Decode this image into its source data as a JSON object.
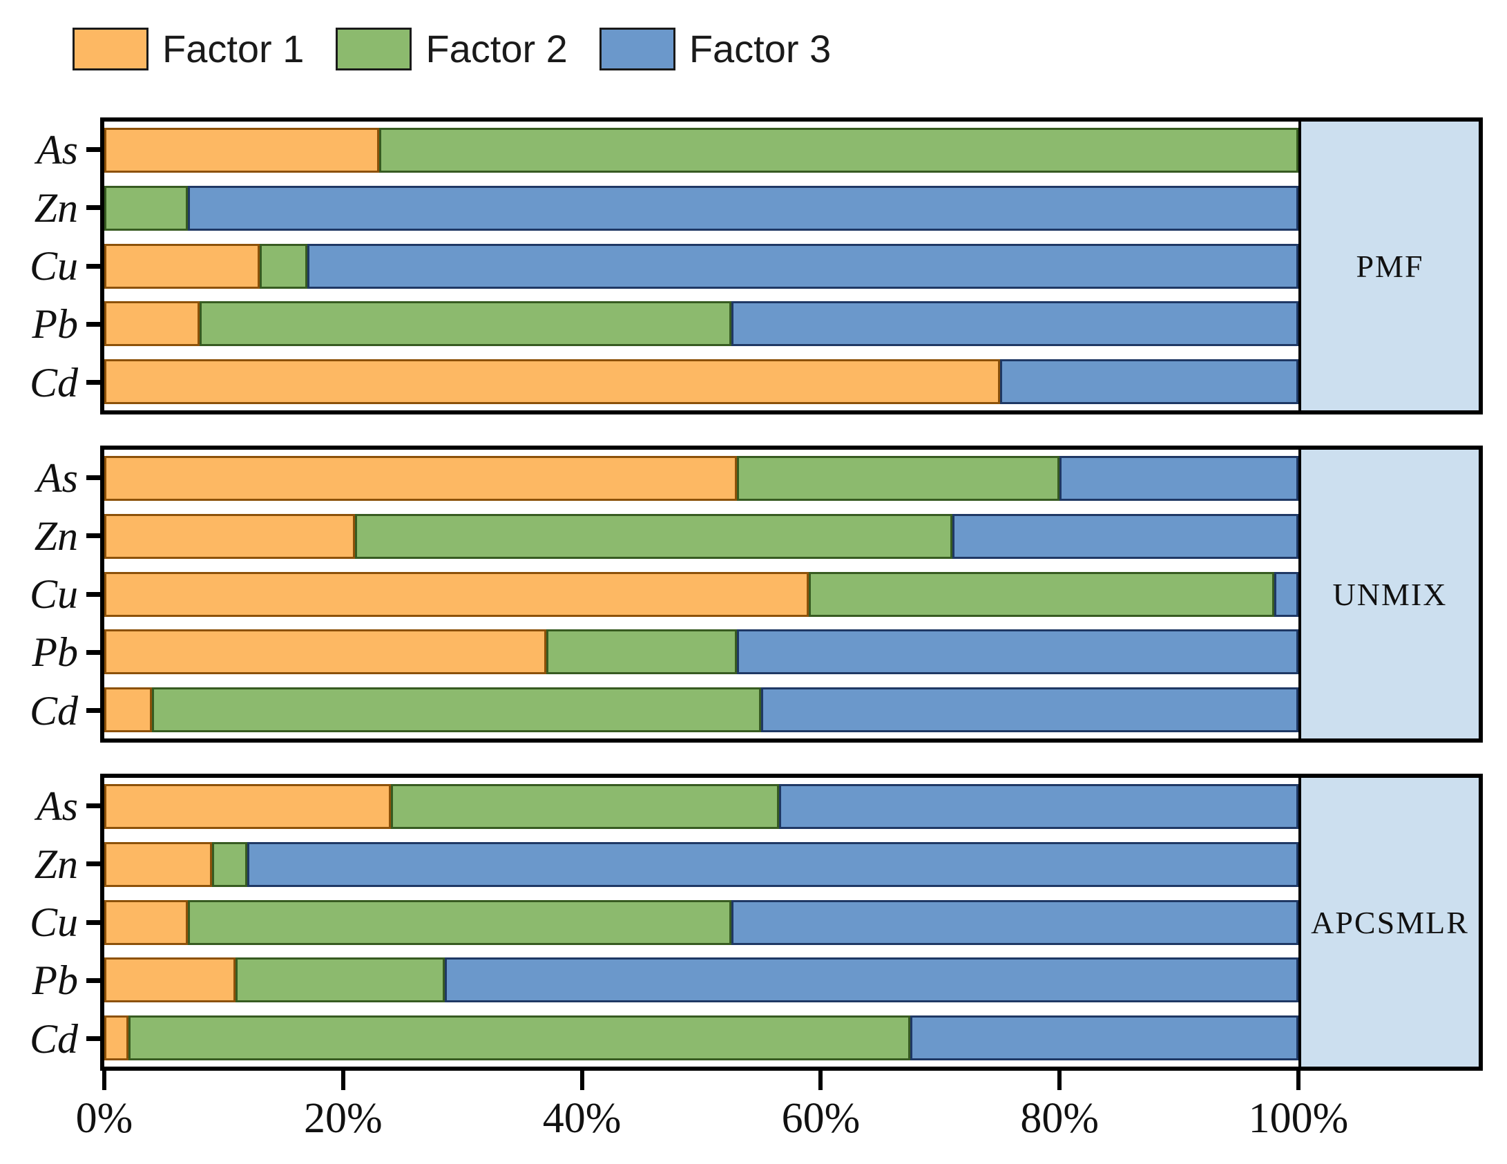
{
  "legend": {
    "items": [
      {
        "label": "Factor 1",
        "color": "#FDB863"
      },
      {
        "label": "Factor 2",
        "color": "#8CBA6E"
      },
      {
        "label": "Factor 3",
        "color": "#6B98CB"
      }
    ]
  },
  "colors": {
    "factor_fill": [
      "#FDB863",
      "#8CBA6E",
      "#6B98CB"
    ],
    "factor_border": [
      "#8C5109",
      "#375B21",
      "#1F3864"
    ],
    "panel_strip_bg": "#CCDFEF",
    "panel_border": "#000000"
  },
  "x_axis": {
    "tick_labels": [
      "0%",
      "20%",
      "40%",
      "60%",
      "80%",
      "100%"
    ],
    "tick_values": [
      0,
      20,
      40,
      60,
      80,
      100
    ]
  },
  "chart_data": {
    "type": "bar",
    "orientation": "horizontal",
    "stacked": true,
    "unit": "percent",
    "xlim": [
      0,
      100
    ],
    "grid": false,
    "legend_position": "top",
    "categories": [
      "As",
      "Zn",
      "Cu",
      "Pb",
      "Cd"
    ],
    "series_names": [
      "Factor 1",
      "Factor 2",
      "Factor 3"
    ],
    "panels": [
      {
        "label": "PMF",
        "rows": [
          {
            "element": "As",
            "values": [
              23,
              77,
              0
            ]
          },
          {
            "element": "Zn",
            "values": [
              0,
              7,
              93
            ]
          },
          {
            "element": "Cu",
            "values": [
              13,
              4,
              83
            ]
          },
          {
            "element": "Pb",
            "values": [
              8,
              44.5,
              47.5
            ]
          },
          {
            "element": "Cd",
            "values": [
              75,
              0,
              25
            ]
          }
        ]
      },
      {
        "label": "UNMIX",
        "rows": [
          {
            "element": "As",
            "values": [
              53,
              27,
              20
            ]
          },
          {
            "element": "Zn",
            "values": [
              21,
              50,
              29
            ]
          },
          {
            "element": "Cu",
            "values": [
              59,
              39,
              2
            ]
          },
          {
            "element": "Pb",
            "values": [
              37,
              16,
              47
            ]
          },
          {
            "element": "Cd",
            "values": [
              4,
              51,
              45
            ]
          }
        ]
      },
      {
        "label": "APCSMLR",
        "rows": [
          {
            "element": "As",
            "values": [
              24,
              32.5,
              43.5
            ]
          },
          {
            "element": "Zn",
            "values": [
              9,
              3,
              88
            ]
          },
          {
            "element": "Cu",
            "values": [
              7,
              45.5,
              47.5
            ]
          },
          {
            "element": "Pb",
            "values": [
              11,
              17.5,
              71.5
            ]
          },
          {
            "element": "Cd",
            "values": [
              2,
              65.5,
              32.5
            ]
          }
        ]
      }
    ]
  }
}
